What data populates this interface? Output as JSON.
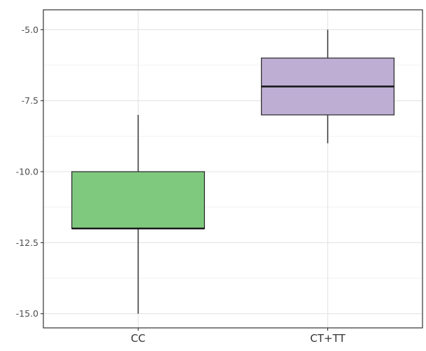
{
  "chart_data": {
    "type": "box",
    "title": "",
    "xlabel": "",
    "ylabel": "",
    "ylim": [
      -15.5,
      -4.3
    ],
    "y_ticks": [
      -5.0,
      -7.5,
      -10.0,
      -12.5,
      -15.0
    ],
    "y_tick_labels": [
      "-5.0",
      "-7.5",
      "-10.0",
      "-12.5",
      "-15.0"
    ],
    "grid": true,
    "categories": [
      "CC",
      "CT+TT"
    ],
    "boxes": [
      {
        "category": "CC",
        "whisker_low": -15.0,
        "q1": -12.0,
        "median": -12.0,
        "q3": -10.0,
        "whisker_high": -8.0,
        "fill": "#7fc97f"
      },
      {
        "category": "CT+TT",
        "whisker_low": -9.0,
        "q1": -8.0,
        "median": -7.0,
        "q3": -6.0,
        "whisker_high": -5.0,
        "fill": "#beaed4"
      }
    ]
  }
}
